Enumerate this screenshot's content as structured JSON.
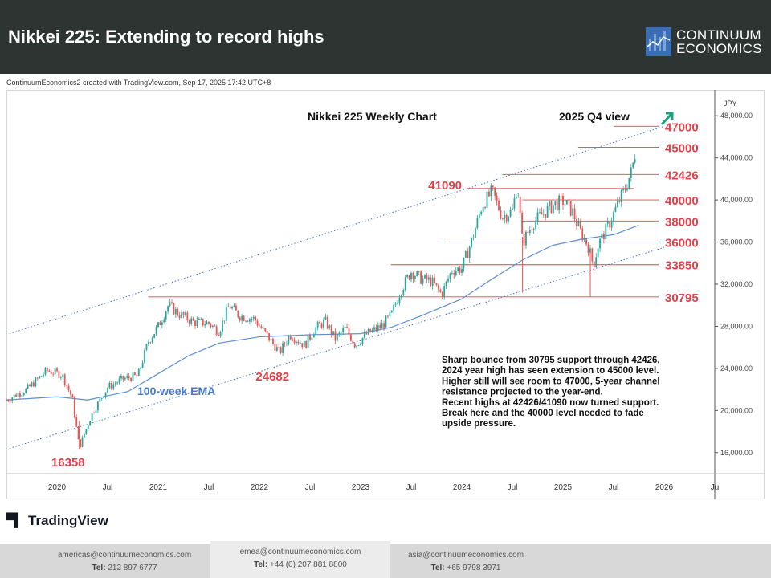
{
  "header": {
    "title": "Nikkei 225: Extending to record highs",
    "logo_line1": "CONTINUUM",
    "logo_line2": "ECONOMICS"
  },
  "credit": "ContinuumEconomics2 created with TradingView.com, Sep 17, 2025 17:42 UTC+8",
  "tradingview_label": "TradingView",
  "chart_data": {
    "type": "candlestick",
    "title": "Nikkei 225 Weekly Chart",
    "view_label": "2025 Q4 view",
    "view_arrow": "up",
    "currency": "JPY",
    "y_axis": {
      "range": [
        14000,
        50000
      ],
      "ticks": [
        16000,
        20000,
        24000,
        28000,
        32000,
        36000,
        40000,
        44000,
        48000
      ],
      "tick_labels": [
        "16,000.00",
        "20,000.00",
        "24,000.00",
        "28,000.00",
        "32,000.00",
        "36,000.00",
        "40,000.00",
        "44,000.00",
        "48,000.00"
      ]
    },
    "x_axis": {
      "range": [
        2019.5,
        2026.5
      ],
      "ticks": [
        2020.0,
        2020.5,
        2021.0,
        2021.5,
        2022.0,
        2022.5,
        2023.0,
        2023.5,
        2024.0,
        2024.5,
        2025.0,
        2025.5,
        2026.0,
        2026.5
      ],
      "tick_labels": [
        "2020",
        "Jul",
        "2021",
        "Jul",
        "2022",
        "Jul",
        "2023",
        "Jul",
        "2024",
        "Jul",
        "2025",
        "Jul",
        "2026",
        "Ju"
      ]
    },
    "price_path": [
      [
        2019.5,
        21000
      ],
      [
        2019.7,
        22000
      ],
      [
        2019.9,
        23800
      ],
      [
        2020.05,
        23400
      ],
      [
        2020.15,
        21200
      ],
      [
        2020.22,
        16500
      ],
      [
        2020.35,
        19800
      ],
      [
        2020.5,
        22200
      ],
      [
        2020.65,
        23000
      ],
      [
        2020.8,
        23300
      ],
      [
        2020.9,
        26500
      ],
      [
        2021.0,
        28000
      ],
      [
        2021.1,
        30000
      ],
      [
        2021.2,
        29200
      ],
      [
        2021.35,
        28400
      ],
      [
        2021.5,
        28300
      ],
      [
        2021.6,
        27500
      ],
      [
        2021.7,
        30000
      ],
      [
        2021.8,
        29000
      ],
      [
        2021.95,
        28700
      ],
      [
        2022.1,
        26800
      ],
      [
        2022.2,
        25500
      ],
      [
        2022.3,
        27200
      ],
      [
        2022.45,
        26200
      ],
      [
        2022.55,
        27800
      ],
      [
        2022.65,
        28500
      ],
      [
        2022.75,
        26800
      ],
      [
        2022.85,
        27800
      ],
      [
        2022.95,
        26200
      ],
      [
        2023.05,
        27200
      ],
      [
        2023.2,
        28000
      ],
      [
        2023.3,
        29000
      ],
      [
        2023.4,
        31500
      ],
      [
        2023.5,
        33200
      ],
      [
        2023.6,
        32500
      ],
      [
        2023.7,
        32300
      ],
      [
        2023.8,
        31000
      ],
      [
        2023.9,
        33300
      ],
      [
        2024.0,
        33500
      ],
      [
        2024.1,
        36200
      ],
      [
        2024.2,
        39500
      ],
      [
        2024.3,
        40800
      ],
      [
        2024.4,
        38400
      ],
      [
        2024.5,
        39000
      ],
      [
        2024.55,
        41500
      ],
      [
        2024.6,
        35900
      ],
      [
        2024.7,
        37800
      ],
      [
        2024.8,
        38700
      ],
      [
        2024.9,
        39500
      ],
      [
        2025.0,
        39900
      ],
      [
        2025.1,
        38800
      ],
      [
        2025.15,
        37400
      ],
      [
        2025.25,
        35600
      ],
      [
        2025.3,
        33800
      ],
      [
        2025.35,
        35800
      ],
      [
        2025.45,
        37600
      ],
      [
        2025.55,
        39800
      ],
      [
        2025.62,
        41200
      ],
      [
        2025.68,
        42800
      ],
      [
        2025.72,
        44800
      ]
    ],
    "ema": {
      "label": "100-week EMA",
      "values": [
        [
          2019.5,
          21000
        ],
        [
          2020.0,
          21300
        ],
        [
          2020.3,
          21000
        ],
        [
          2020.7,
          21800
        ],
        [
          2021.0,
          23500
        ],
        [
          2021.3,
          25200
        ],
        [
          2021.6,
          26400
        ],
        [
          2022.0,
          27000
        ],
        [
          2022.5,
          27200
        ],
        [
          2023.0,
          27300
        ],
        [
          2023.3,
          27900
        ],
        [
          2023.6,
          29000
        ],
        [
          2024.0,
          30600
        ],
        [
          2024.3,
          32500
        ],
        [
          2024.6,
          34300
        ],
        [
          2024.9,
          35700
        ],
        [
          2025.2,
          36300
        ],
        [
          2025.5,
          36700
        ],
        [
          2025.75,
          37600
        ]
      ]
    },
    "channel_upper": [
      [
        2019.53,
        27300
      ],
      [
        2026.0,
        47000
      ]
    ],
    "channel_lower": [
      [
        2019.53,
        16400
      ],
      [
        2026.0,
        35500
      ]
    ],
    "levels": [
      {
        "label": "47000",
        "value": 47000,
        "start": 2025.5
      },
      {
        "label": "45000",
        "value": 45000,
        "start": 2025.15
      },
      {
        "label": "42426",
        "value": 42426,
        "start": 2024.4
      },
      {
        "label": "40000",
        "value": 40000,
        "start": 2024.6
      },
      {
        "label": "38000",
        "value": 38000,
        "start": 2024.6
      },
      {
        "label": "36000",
        "value": 36000,
        "start": 2023.85
      },
      {
        "label": "33850",
        "value": 33850,
        "start": 2023.3
      },
      {
        "label": "30795",
        "value": 30795,
        "start": 2020.9
      }
    ],
    "level_41090": {
      "label": "41090",
      "value": 41090,
      "start": 2024.05
    },
    "point_labels": [
      {
        "label": "16358",
        "x": 2020.15,
        "y": 16358
      },
      {
        "label": "24682",
        "x": 2022.17,
        "y": 24682
      }
    ],
    "annotation": [
      "Sharp bounce from 30795 support through 42426,",
      "2024 year high has seen extension to 45000 level.",
      "Higher still will see room to 47000, 5-year channel",
      "resistance projected to the year-end.",
      "Recent highs at 42426/41090 now turned support.",
      "Break here and the 40000 level needed to fade",
      "upside pressure."
    ],
    "colors": {
      "up": "#26a69a",
      "down": "#ef5350",
      "level": "#e0404a",
      "ema": "#5b8fd6",
      "channel": "#3f6fd6"
    }
  },
  "footer": {
    "contacts": [
      {
        "email": "americas@continuumeconomics.com",
        "tel_label": "Tel:",
        "tel": "212 897 6777"
      },
      {
        "email": "emea@continuumeconomics.com",
        "tel_label": "Tel:",
        "tel": "+44 (0) 207 881 8800"
      },
      {
        "email": "asia@continuumeconomics.com",
        "tel_label": "Tel:",
        "tel": "+65 9798 3971"
      }
    ]
  }
}
